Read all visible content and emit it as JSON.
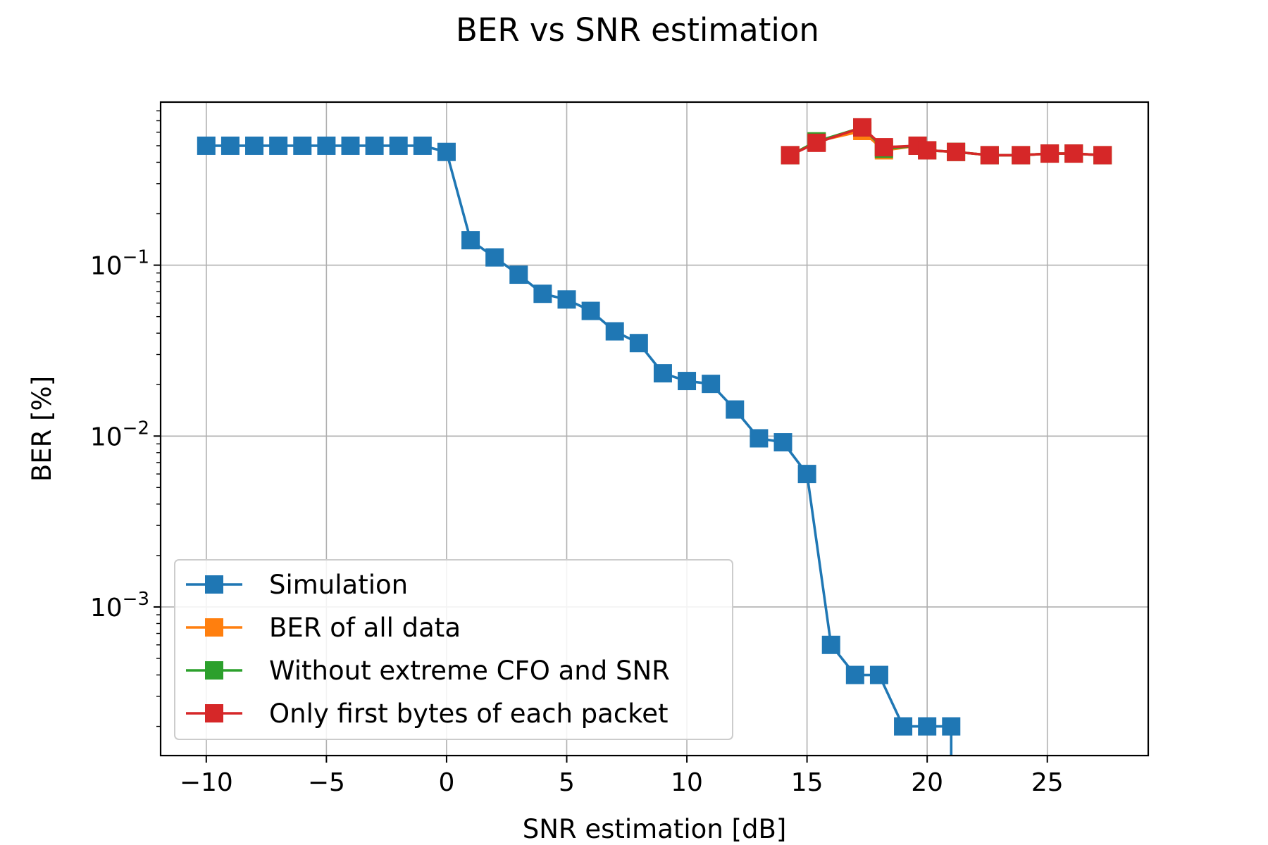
{
  "chart_data": {
    "type": "line",
    "title": "BER vs SNR estimation",
    "xlabel": "SNR estimation [dB]",
    "ylabel": "BER [%]",
    "xlim": [
      -11.9,
      29.2
    ],
    "ylim": [
      0.000135,
      0.9
    ],
    "yscale": "log",
    "grid": true,
    "legend_position": "lower-left",
    "x_ticks": [
      -10,
      -5,
      0,
      5,
      10,
      15,
      20,
      25
    ],
    "x_tick_labels": [
      "−10",
      "−5",
      "0",
      "5",
      "10",
      "15",
      "20",
      "25"
    ],
    "y_ticks": [
      {
        "value": 0.1,
        "base": "10",
        "exp": "−1"
      },
      {
        "value": 0.01,
        "base": "10",
        "exp": "−2"
      },
      {
        "value": 0.001,
        "base": "10",
        "exp": "−3"
      }
    ],
    "series": [
      {
        "name": "Simulation",
        "color": "#1f77b4",
        "marker": "square",
        "x": [
          -10,
          -9,
          -8,
          -7,
          -6,
          -5,
          -4,
          -3,
          -2,
          -1,
          0,
          1,
          2,
          3,
          4,
          5,
          6,
          7,
          8,
          9,
          10,
          11,
          12,
          13,
          14,
          15,
          16,
          17,
          18,
          19,
          20,
          21
        ],
        "y": [
          0.5,
          0.5,
          0.5,
          0.5,
          0.5,
          0.5,
          0.5,
          0.5,
          0.5,
          0.5,
          0.46,
          0.14,
          0.111,
          0.088,
          0.068,
          0.063,
          0.054,
          0.041,
          0.035,
          0.0233,
          0.021,
          0.0202,
          0.0143,
          0.0097,
          0.0092,
          0.006,
          0.0006,
          0.0004,
          0.0004,
          0.0002,
          0.0002,
          0.0002
        ],
        "tail_to_bottom": true
      },
      {
        "name": "BER of all data",
        "color": "#ff7f0e",
        "marker": "square",
        "x": [
          14.3,
          15.4,
          17.3,
          18.2,
          19.6,
          20.0,
          21.2,
          22.6,
          23.9,
          25.1,
          26.1,
          27.3
        ],
        "y": [
          0.44,
          0.53,
          0.61,
          0.47,
          0.5,
          0.47,
          0.46,
          0.44,
          0.44,
          0.45,
          0.45,
          0.44
        ]
      },
      {
        "name": "Without extreme CFO and SNR",
        "color": "#2ca02c",
        "marker": "square",
        "x": [
          14.3,
          15.4,
          17.3,
          18.2,
          19.6,
          20.0,
          21.2,
          22.6,
          23.9,
          25.1,
          26.1,
          27.3
        ],
        "y": [
          0.44,
          0.53,
          0.64,
          0.48,
          0.5,
          0.47,
          0.46,
          0.44,
          0.44,
          0.45,
          0.45,
          0.44
        ]
      },
      {
        "name": "Only first bytes of each packet",
        "color": "#d62728",
        "marker": "square",
        "x": [
          14.3,
          15.4,
          17.3,
          18.2,
          19.6,
          20.0,
          21.2,
          22.6,
          23.9,
          25.1,
          26.1,
          27.3
        ],
        "y": [
          0.44,
          0.52,
          0.64,
          0.49,
          0.5,
          0.47,
          0.46,
          0.44,
          0.44,
          0.45,
          0.45,
          0.44
        ]
      }
    ]
  }
}
